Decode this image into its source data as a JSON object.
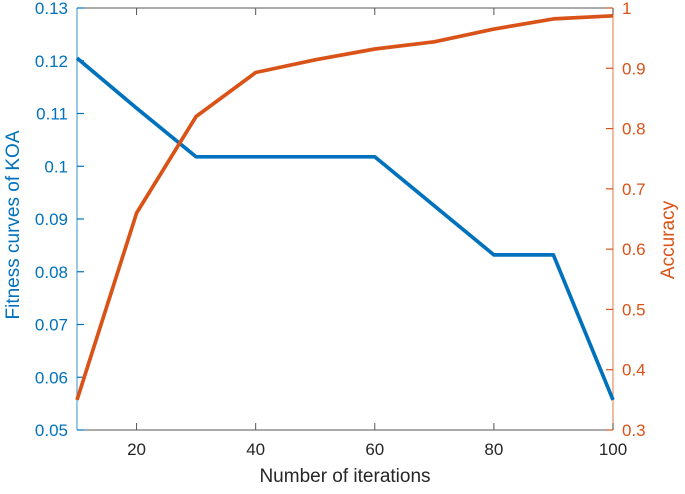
{
  "chart_data": {
    "type": "line",
    "title": "",
    "xlabel": "Number of iterations",
    "ylabel_left": "Fitness curves of KOA",
    "ylabel_right": "Accuracy",
    "xlim": [
      10,
      100
    ],
    "ylim_left": [
      0.05,
      0.13
    ],
    "ylim_right": [
      0.3,
      1
    ],
    "xtick_labels": [
      "20",
      "40",
      "60",
      "80",
      "100"
    ],
    "ytick_labels_left": [
      "0.05",
      "0.06",
      "0.07",
      "0.08",
      "0.09",
      "0.1",
      "0.11",
      "0.12",
      "0.13"
    ],
    "ytick_labels_right": [
      "0.3",
      "0.4",
      "0.5",
      "0.6",
      "0.7",
      "0.8",
      "0.9",
      "1"
    ],
    "grid": false,
    "legend": "none",
    "x": [
      10,
      20,
      30,
      40,
      50,
      60,
      70,
      80,
      90,
      100
    ],
    "series": [
      {
        "name": "Fitness curves of KOA",
        "axis": "left",
        "color": "#0072BD",
        "values": [
          0.1205,
          0.111,
          0.1018,
          0.1018,
          0.1018,
          0.1018,
          0.0925,
          0.0832,
          0.0832,
          0.0557
        ]
      },
      {
        "name": "Accuracy",
        "axis": "right",
        "color": "#D95319",
        "values": [
          0.35,
          0.66,
          0.82,
          0.893,
          0.914,
          0.932,
          0.944,
          0.965,
          0.982,
          0.987
        ]
      }
    ],
    "colors": {
      "left_axis": "#0072BD",
      "right_axis": "#D95319",
      "x_axis_text": "#262626",
      "frame": "#555555",
      "background": "#ffffff"
    }
  }
}
